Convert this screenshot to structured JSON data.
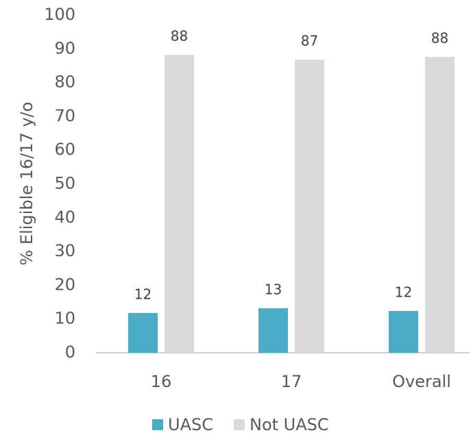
{
  "chart_data": {
    "type": "bar",
    "y_label": "% Eligible 16/17 y/o",
    "categories": [
      "16",
      "17",
      "Overall"
    ],
    "series": [
      {
        "name": "UASC",
        "color": "#4bacc6",
        "values": [
          11.8,
          13.2,
          12.4
        ],
        "value_labels": [
          "12",
          "13",
          "12"
        ]
      },
      {
        "name": "Not UASC",
        "color": "#d9d9d9",
        "values": [
          88.2,
          86.8,
          87.6
        ],
        "value_labels": [
          "88",
          "87",
          "88"
        ]
      }
    ],
    "ylim": [
      0,
      100
    ],
    "yticks": [
      0,
      10,
      20,
      30,
      40,
      50,
      60,
      70,
      80,
      90,
      100
    ],
    "legend": "bottom"
  }
}
